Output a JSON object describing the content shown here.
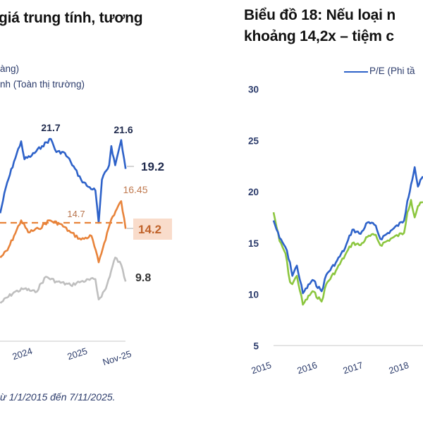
{
  "left": {
    "title_fragment": "giá trung tính, tương",
    "legend": [
      "àng)",
      "nh (Toàn thị trường)"
    ],
    "footnote": "ừ 1/1/2015 đến 7/11/2025."
  },
  "right": {
    "title_lines": [
      "Biểu đồ 18: Nếu loại n",
      "khoảng 14,2x – tiệm c"
    ],
    "legend": [
      "P/E (Phi tầ"
    ]
  },
  "colors": {
    "blue": "#2e62c9",
    "orange": "#e8833a",
    "gray": "#bfbfbf",
    "green": "#8cc63f",
    "navy": "#1f2a4d"
  },
  "chart_data": [
    {
      "type": "line",
      "x_tick_labels": [
        {
          "x": 2024.0,
          "label": "2024"
        },
        {
          "x": 2025.0,
          "label": "2025"
        },
        {
          "x": 2025.85,
          "label": "Nov-25"
        }
      ],
      "reference_line": {
        "value": 14.7,
        "label": "14.7",
        "style": "dashed",
        "color": "#e8833a"
      },
      "annotations": [
        {
          "x": 2024.45,
          "y": 21.7,
          "label": "21.7"
        },
        {
          "x": 2025.73,
          "y": 21.6,
          "label": "21.6"
        },
        {
          "x": 2025.73,
          "y": 16.5,
          "label": "16.45"
        }
      ],
      "series": [
        {
          "color": "#2e62c9",
          "end_label": "19.2",
          "x": [
            2023.53,
            2023.63,
            2023.78,
            2023.91,
            2023.97,
            2024.1,
            2024.29,
            2024.45,
            2024.55,
            2024.68,
            2024.81,
            2025.0,
            2025.13,
            2025.26,
            2025.32,
            2025.38,
            2025.51,
            2025.55,
            2025.62,
            2025.73,
            2025.81
          ],
          "y": [
            15.5,
            17.6,
            19.8,
            21.5,
            20.0,
            20.3,
            21.1,
            21.7,
            20.6,
            20.6,
            19.8,
            18.3,
            17.7,
            17.4,
            14.7,
            18.3,
            19.5,
            21.1,
            19.5,
            21.6,
            19.2
          ]
        },
        {
          "color": "#e8833a",
          "end_label": "14.2",
          "x": [
            2023.53,
            2023.66,
            2023.78,
            2023.91,
            2024.04,
            2024.23,
            2024.42,
            2024.62,
            2024.81,
            2025.0,
            2025.19,
            2025.32,
            2025.42,
            2025.55,
            2025.73,
            2025.81
          ],
          "y": [
            11.8,
            12.4,
            13.6,
            14.9,
            13.9,
            14.2,
            14.9,
            14.6,
            13.9,
            13.3,
            13.6,
            11.4,
            13.0,
            15.0,
            16.5,
            14.2
          ]
        },
        {
          "color": "#bfbfbf",
          "end_label": "9.8",
          "x": [
            2023.53,
            2023.78,
            2023.97,
            2024.17,
            2024.36,
            2024.55,
            2024.81,
            2025.0,
            2025.26,
            2025.32,
            2025.45,
            2025.62,
            2025.73,
            2025.81
          ],
          "y": [
            8.0,
            8.9,
            9.2,
            8.9,
            10.2,
            9.8,
            9.5,
            9.8,
            10.0,
            8.3,
            9.2,
            11.8,
            11.2,
            9.8
          ]
        }
      ]
    },
    {
      "type": "line",
      "ylim": [
        5,
        30
      ],
      "y_ticks": [
        5,
        10,
        15,
        20,
        25,
        30
      ],
      "x_tick_labels": [
        "2015",
        "2016",
        "2017",
        "2018"
      ],
      "series": [
        {
          "name": "P/E (Phi tầ",
          "color": "#2e62c9",
          "x": [
            2015.0,
            2015.13,
            2015.26,
            2015.36,
            2015.41,
            2015.51,
            2015.64,
            2015.85,
            2016.05,
            2016.15,
            2016.36,
            2016.56,
            2016.72,
            2016.9,
            2017.05,
            2017.23,
            2017.33,
            2017.59,
            2017.85,
            2017.92,
            2018.0,
            2018.08,
            2018.15,
            2018.26
          ],
          "y": [
            17.2,
            15.5,
            14.6,
            13.1,
            11.8,
            12.8,
            10.1,
            11.4,
            10.3,
            11.9,
            13.1,
            14.5,
            16.3,
            15.9,
            17.0,
            16.7,
            15.4,
            16.3,
            17.2,
            19.1,
            20.7,
            22.4,
            20.5,
            21.5
          ]
        },
        {
          "color": "#8cc63f",
          "x": [
            2015.0,
            2015.13,
            2015.26,
            2015.36,
            2015.41,
            2015.51,
            2015.64,
            2015.85,
            2016.05,
            2016.15,
            2016.36,
            2016.56,
            2016.72,
            2016.9,
            2017.05,
            2017.23,
            2017.33,
            2017.59,
            2017.85,
            2017.92,
            2018.0,
            2018.08,
            2018.15,
            2018.26
          ],
          "y": [
            18.0,
            15.2,
            14.0,
            11.2,
            11.0,
            11.8,
            9.0,
            10.3,
            9.3,
            11.0,
            12.3,
            13.8,
            15.0,
            14.8,
            15.6,
            15.8,
            14.8,
            15.5,
            16.0,
            18.0,
            19.2,
            17.5,
            18.6,
            19.0
          ]
        }
      ]
    }
  ]
}
